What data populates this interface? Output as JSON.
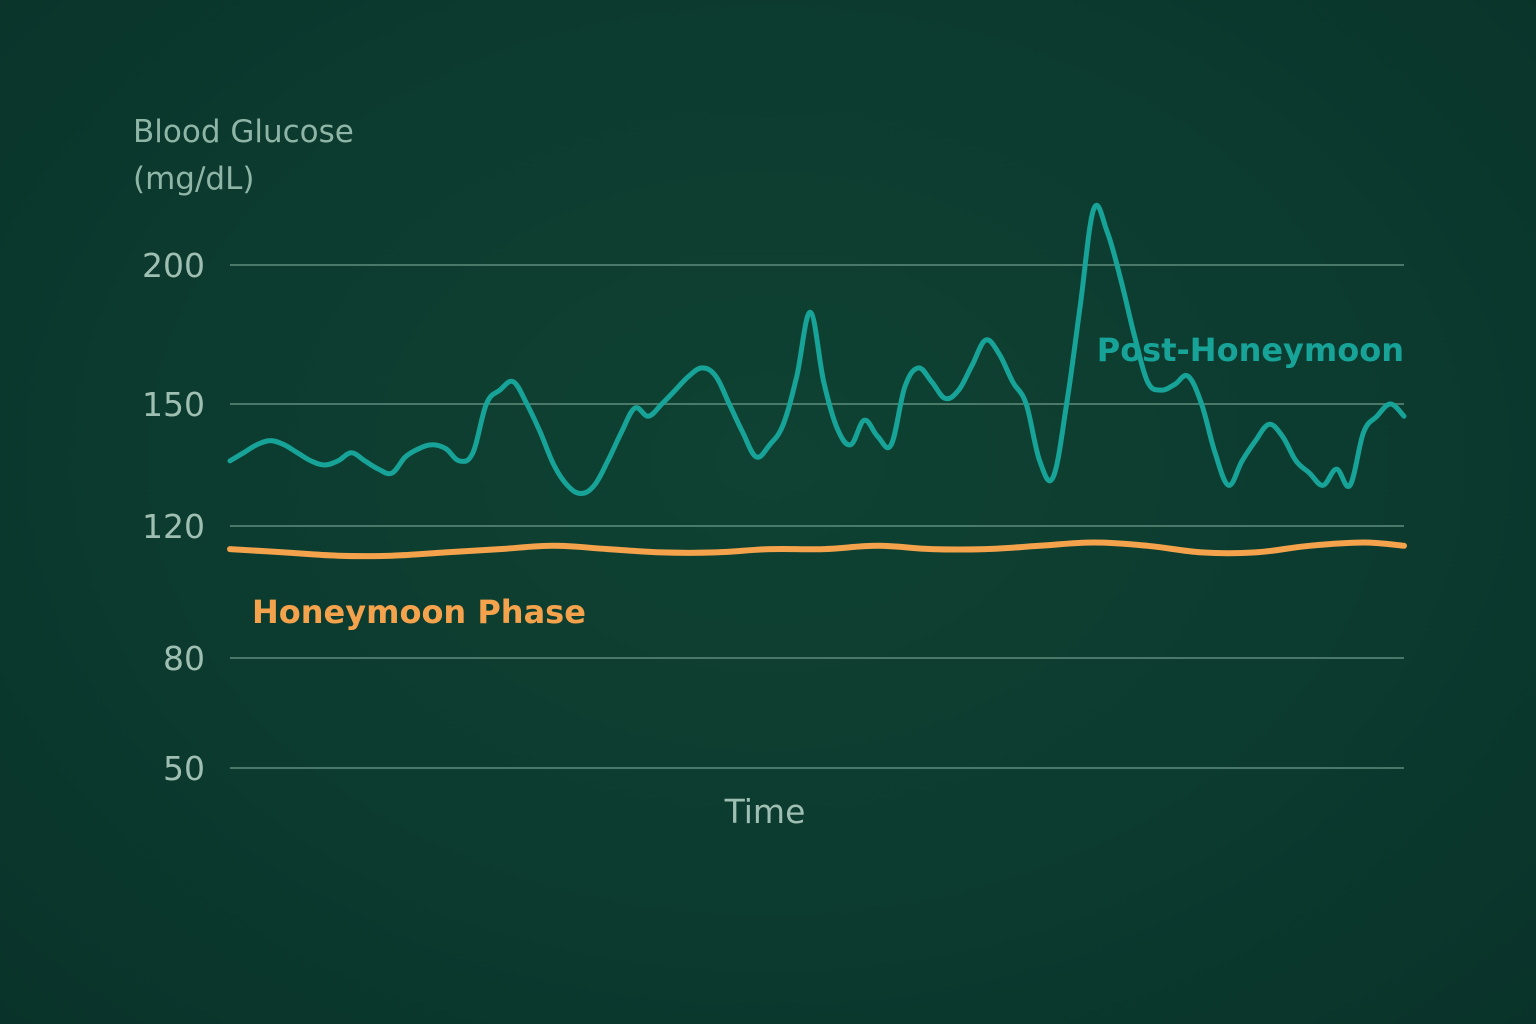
{
  "chart_data": {
    "type": "line",
    "title": "",
    "ylabel_lines": [
      "Blood Glucose",
      "(mg/dL)"
    ],
    "xlabel": "Time",
    "y_ticks": [
      {
        "value": 200,
        "label": "200"
      },
      {
        "value": 150,
        "label": "150"
      },
      {
        "value": 120,
        "label": "120"
      },
      {
        "value": 80,
        "label": "80"
      },
      {
        "value": 50,
        "label": "50"
      }
    ],
    "ylim": [
      50,
      200
    ],
    "grid": true,
    "legend": "inline labels",
    "series": [
      {
        "name": "Post-Honeymoon",
        "color": "#17a398",
        "x": [
          0,
          1,
          2,
          3,
          4,
          5,
          6,
          7,
          8,
          9,
          10,
          11,
          12,
          13,
          14,
          15,
          16,
          17,
          18,
          19,
          20,
          21,
          22,
          23,
          24,
          25,
          26,
          27,
          28,
          29,
          30,
          31,
          32,
          33,
          34,
          35,
          36,
          37,
          38,
          39,
          40,
          41,
          42,
          43,
          44,
          45,
          46,
          47,
          48,
          49,
          50,
          51,
          52,
          53,
          54,
          55,
          56,
          57,
          58,
          59,
          60,
          61,
          62,
          63,
          64,
          65,
          66,
          67,
          68,
          69,
          70,
          71,
          72,
          73,
          74,
          75,
          76,
          77,
          78,
          79,
          80,
          81,
          82,
          83,
          84,
          85,
          86,
          87
        ],
        "values": [
          136,
          138,
          140,
          141,
          140,
          138,
          136,
          135,
          136,
          138,
          136,
          134,
          133,
          137,
          139,
          140,
          139,
          136,
          138,
          150,
          155,
          158,
          150,
          143,
          135,
          130,
          128,
          130,
          136,
          143,
          149,
          147,
          150,
          155,
          160,
          163,
          160,
          150,
          143,
          137,
          140,
          145,
          160,
          183,
          158,
          144,
          140,
          146,
          142,
          140,
          156,
          163,
          158,
          152,
          155,
          164,
          173,
          168,
          158,
          150,
          136,
          132,
          150,
          185,
          220,
          212,
          195,
          175,
          158,
          155,
          157,
          160,
          150,
          138,
          130,
          136,
          141,
          145,
          142,
          136,
          133,
          130,
          134,
          130,
          143,
          147,
          150,
          147
        ]
      },
      {
        "name": "Honeymoon Phase",
        "color": "#f4a24c",
        "x": [
          0,
          4,
          8,
          12,
          16,
          20,
          24,
          28,
          32,
          36,
          40,
          44,
          48,
          52,
          56,
          60,
          64,
          68,
          72,
          76,
          80,
          84,
          87
        ],
        "values": [
          113,
          112,
          111,
          111,
          112,
          113,
          114,
          113,
          112,
          112,
          113,
          113,
          114,
          113,
          113,
          114,
          115,
          114,
          112,
          112,
          114,
          115,
          114
        ]
      }
    ]
  }
}
